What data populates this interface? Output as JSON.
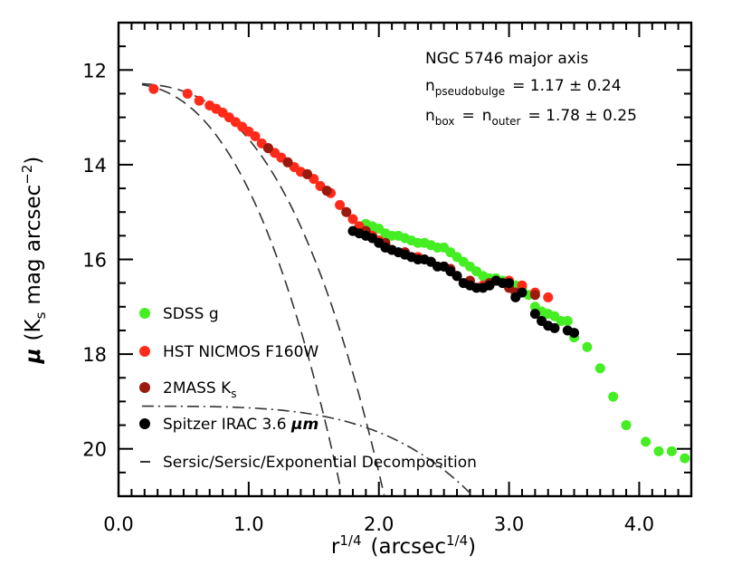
{
  "chart_data": {
    "type": "scatter",
    "xlabel": "r",
    "xlabel_exp": "1/4",
    "xlabel_unit_prefix": "(arcsec",
    "xlabel_unit_exp": "1/4",
    "xlabel_unit_suffix": ")",
    "ylabel_mu": "μ",
    "ylabel_paren_open": "(K",
    "ylabel_sub": "s",
    "ylabel_rest": "mag arcsec",
    "ylabel_exp": "−2",
    "ylabel_paren_close": ")",
    "xlim": [
      0.0,
      4.4
    ],
    "ylim": [
      21.0,
      11.0
    ],
    "x_major_ticks": [
      0.0,
      1.0,
      2.0,
      3.0,
      4.0
    ],
    "x_tick_labels": [
      "0.0",
      "1.0",
      "2.0",
      "3.0",
      "4.0"
    ],
    "y_major_ticks": [
      12,
      14,
      16,
      18,
      20
    ],
    "y_tick_labels": [
      "12",
      "14",
      "16",
      "18",
      "20"
    ],
    "annotation": {
      "line1": "NGC 5746 major axis",
      "line2_n": "n",
      "line2_sub": "pseudobulge",
      "line2_val": "= 1.17 ± 0.24",
      "line3_n1": "n",
      "line3_sub1": "box",
      "line3_eq": "=",
      "line3_n2": "n",
      "line3_sub2": "outer",
      "line3_val": "= 1.78 ± 0.25"
    },
    "legend": [
      {
        "label": "SDSS g",
        "sub": "",
        "color": "#44ee22",
        "text_color": "#44ee22",
        "marker": "circle"
      },
      {
        "label": "HST NICMOS F160W",
        "sub": "",
        "color": "#ff2a1a",
        "text_color": "#ff2a1a",
        "marker": "circle"
      },
      {
        "label": "2MASS K",
        "sub": "s",
        "color": "#9a1a0e",
        "text_color": "#9a1a0e",
        "marker": "circle"
      },
      {
        "label": "Spitzer IRAC 3.6 ",
        "sub": "",
        "mu": "μm",
        "color": "#000000",
        "text_color": "#000000",
        "marker": "circle"
      },
      {
        "label": "Sersic/Sersic/Exponential Decomposition",
        "sub": "",
        "color": "#000000",
        "text_color": "#000000",
        "marker": "dash"
      }
    ],
    "series": [
      {
        "name": "SDSS g",
        "color": "#44ee22",
        "points": [
          [
            1.85,
            15.3
          ],
          [
            1.9,
            15.25
          ],
          [
            1.95,
            15.3
          ],
          [
            2.0,
            15.35
          ],
          [
            2.05,
            15.45
          ],
          [
            2.1,
            15.5
          ],
          [
            2.15,
            15.5
          ],
          [
            2.2,
            15.55
          ],
          [
            2.25,
            15.6
          ],
          [
            2.3,
            15.65
          ],
          [
            2.35,
            15.65
          ],
          [
            2.4,
            15.7
          ],
          [
            2.45,
            15.75
          ],
          [
            2.5,
            15.75
          ],
          [
            2.55,
            15.85
          ],
          [
            2.6,
            15.95
          ],
          [
            2.65,
            16.05
          ],
          [
            2.7,
            16.15
          ],
          [
            2.75,
            16.25
          ],
          [
            2.8,
            16.35
          ],
          [
            2.85,
            16.4
          ],
          [
            2.9,
            16.4
          ],
          [
            2.95,
            16.45
          ],
          [
            3.0,
            16.5
          ],
          [
            3.05,
            16.55
          ],
          [
            3.1,
            16.6
          ],
          [
            3.15,
            16.75
          ],
          [
            3.2,
            17.0
          ],
          [
            3.25,
            17.1
          ],
          [
            3.3,
            17.15
          ],
          [
            3.35,
            17.2
          ],
          [
            3.4,
            17.3
          ],
          [
            3.45,
            17.3
          ],
          [
            3.5,
            17.65
          ],
          [
            3.6,
            17.85
          ],
          [
            3.7,
            18.3
          ],
          [
            3.8,
            18.9
          ],
          [
            3.9,
            19.5
          ],
          [
            4.05,
            19.85
          ],
          [
            4.15,
            20.05
          ],
          [
            4.25,
            20.05
          ],
          [
            4.35,
            20.2
          ]
        ]
      },
      {
        "name": "HST NICMOS F160W",
        "color": "#ff2a1a",
        "points": [
          [
            0.27,
            12.4
          ],
          [
            0.53,
            12.5
          ],
          [
            0.62,
            12.65
          ],
          [
            0.7,
            12.75
          ],
          [
            0.75,
            12.82
          ],
          [
            0.8,
            12.9
          ],
          [
            0.85,
            13.0
          ],
          [
            0.9,
            13.1
          ],
          [
            0.95,
            13.2
          ],
          [
            1.0,
            13.3
          ],
          [
            1.05,
            13.4
          ],
          [
            1.1,
            13.55
          ],
          [
            1.15,
            13.65
          ],
          [
            1.2,
            13.75
          ],
          [
            1.25,
            13.85
          ],
          [
            1.3,
            13.95
          ],
          [
            1.35,
            14.05
          ],
          [
            1.4,
            14.15
          ],
          [
            1.45,
            14.2
          ],
          [
            1.5,
            14.3
          ],
          [
            1.55,
            14.45
          ],
          [
            1.6,
            14.55
          ],
          [
            1.63,
            14.6
          ],
          [
            1.7,
            14.85
          ],
          [
            1.75,
            15.0
          ],
          [
            1.8,
            15.15
          ],
          [
            1.85,
            15.3
          ],
          [
            1.9,
            15.4
          ],
          [
            1.95,
            15.5
          ],
          [
            2.0,
            15.6
          ],
          [
            2.05,
            15.7
          ],
          [
            2.1,
            15.8
          ],
          [
            2.2,
            15.85
          ],
          [
            2.3,
            15.95
          ],
          [
            2.4,
            16.05
          ],
          [
            2.5,
            16.15
          ],
          [
            2.6,
            16.35
          ],
          [
            2.7,
            16.5
          ],
          [
            2.8,
            16.55
          ],
          [
            2.9,
            16.45
          ],
          [
            3.0,
            16.45
          ],
          [
            3.1,
            16.55
          ],
          [
            3.2,
            16.7
          ],
          [
            3.3,
            16.8
          ]
        ]
      },
      {
        "name": "2MASS Ks",
        "color": "#9a1a0e",
        "points": [
          [
            1.15,
            13.65
          ],
          [
            1.3,
            13.95
          ],
          [
            1.45,
            14.2
          ],
          [
            1.6,
            14.55
          ],
          [
            1.75,
            15.0
          ],
          [
            1.9,
            15.4
          ],
          [
            2.05,
            15.65
          ],
          [
            2.2,
            15.85
          ],
          [
            2.4,
            16.05
          ],
          [
            2.55,
            16.2
          ],
          [
            2.7,
            16.45
          ],
          [
            2.85,
            16.5
          ],
          [
            3.0,
            16.6
          ],
          [
            3.05,
            16.7
          ],
          [
            3.2,
            16.75
          ]
        ]
      },
      {
        "name": "Spitzer IRAC 3.6 μm",
        "color": "#000000",
        "points": [
          [
            1.8,
            15.4
          ],
          [
            1.85,
            15.45
          ],
          [
            1.9,
            15.5
          ],
          [
            1.95,
            15.55
          ],
          [
            2.0,
            15.65
          ],
          [
            2.05,
            15.75
          ],
          [
            2.1,
            15.8
          ],
          [
            2.15,
            15.85
          ],
          [
            2.2,
            15.9
          ],
          [
            2.25,
            15.95
          ],
          [
            2.3,
            16.0
          ],
          [
            2.35,
            16.0
          ],
          [
            2.4,
            16.05
          ],
          [
            2.45,
            16.15
          ],
          [
            2.5,
            16.15
          ],
          [
            2.55,
            16.25
          ],
          [
            2.6,
            16.35
          ],
          [
            2.65,
            16.5
          ],
          [
            2.7,
            16.55
          ],
          [
            2.75,
            16.6
          ],
          [
            2.8,
            16.6
          ],
          [
            2.85,
            16.55
          ],
          [
            2.9,
            16.45
          ],
          [
            2.95,
            16.5
          ],
          [
            3.0,
            16.5
          ],
          [
            3.05,
            16.8
          ],
          [
            3.1,
            16.7
          ],
          [
            3.2,
            17.15
          ],
          [
            3.25,
            17.3
          ],
          [
            3.3,
            17.4
          ],
          [
            3.35,
            17.45
          ],
          [
            3.45,
            17.5
          ],
          [
            3.5,
            17.55
          ]
        ]
      }
    ],
    "models": [
      {
        "name": "pseudobulge",
        "x_start": 0.18,
        "x_end": 2.55,
        "mu0": 12.28,
        "coef": 2.25,
        "power": 2.5
      },
      {
        "name": "box",
        "x_start": 0.18,
        "x_end": 2.55,
        "mu0": 12.28,
        "coef": 1.18,
        "power": 2.8
      },
      {
        "name": "exponential",
        "x_start": 0.18,
        "x_end": 4.4,
        "mu0": 19.1,
        "coef": 0.0345,
        "power": 4.0
      }
    ]
  }
}
